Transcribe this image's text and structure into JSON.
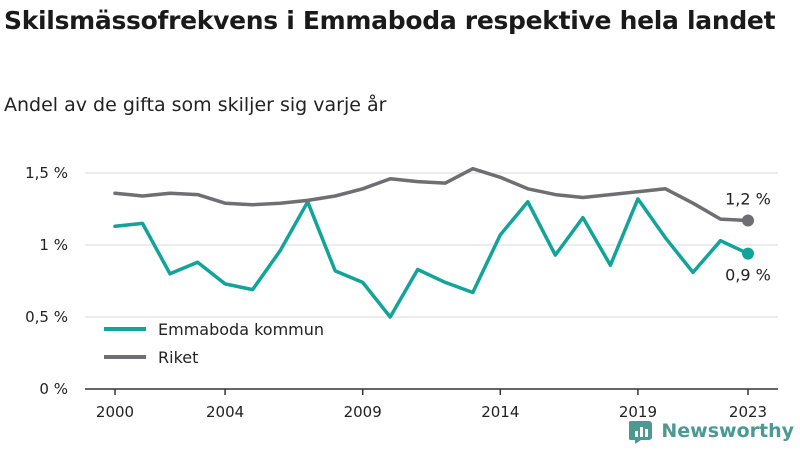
{
  "title": "Skilsmässofrekvens i Emmaboda respektive hela landet",
  "subtitle": "Andel av de gifta som skiljer sig varje år",
  "brand": "Newsworthy",
  "colors": {
    "emmaboda": "#12a399",
    "riket": "#6e6e73",
    "axis": "#333333",
    "grid": "#d9d9d9"
  },
  "chart_data": {
    "type": "line",
    "x": [
      2000,
      2001,
      2002,
      2003,
      2004,
      2005,
      2006,
      2007,
      2008,
      2009,
      2010,
      2011,
      2012,
      2013,
      2014,
      2015,
      2016,
      2017,
      2018,
      2019,
      2020,
      2021,
      2022,
      2023
    ],
    "series": [
      {
        "name": "Emmaboda kommun",
        "color": "#12a399",
        "values": [
          1.13,
          1.15,
          0.8,
          0.88,
          0.73,
          0.69,
          0.96,
          1.3,
          0.82,
          0.74,
          0.5,
          0.83,
          0.74,
          0.67,
          1.07,
          1.3,
          0.93,
          1.19,
          0.86,
          1.32,
          1.05,
          0.81,
          1.03,
          0.94
        ],
        "end_label": "0,9 %"
      },
      {
        "name": "Riket",
        "color": "#6e6e73",
        "values": [
          1.36,
          1.34,
          1.36,
          1.35,
          1.29,
          1.28,
          1.29,
          1.31,
          1.34,
          1.39,
          1.46,
          1.44,
          1.43,
          1.53,
          1.47,
          1.39,
          1.35,
          1.33,
          1.35,
          1.37,
          1.39,
          1.29,
          1.18,
          1.17
        ],
        "end_label": "1,2 %"
      }
    ],
    "yticks": [
      0,
      0.5,
      1,
      1.5
    ],
    "ytick_labels": [
      "0 %",
      "0,5 %",
      "1 %",
      "1,5 %"
    ],
    "xticks": [
      2000,
      2004,
      2009,
      2014,
      2019,
      2023
    ],
    "xtick_labels": [
      "2000",
      "2004",
      "2009",
      "2014",
      "2019",
      "2023"
    ],
    "xlim": [
      2000,
      2023
    ],
    "ylim": [
      0,
      1.5
    ],
    "grid": true,
    "legend_position": "bottom-left"
  }
}
